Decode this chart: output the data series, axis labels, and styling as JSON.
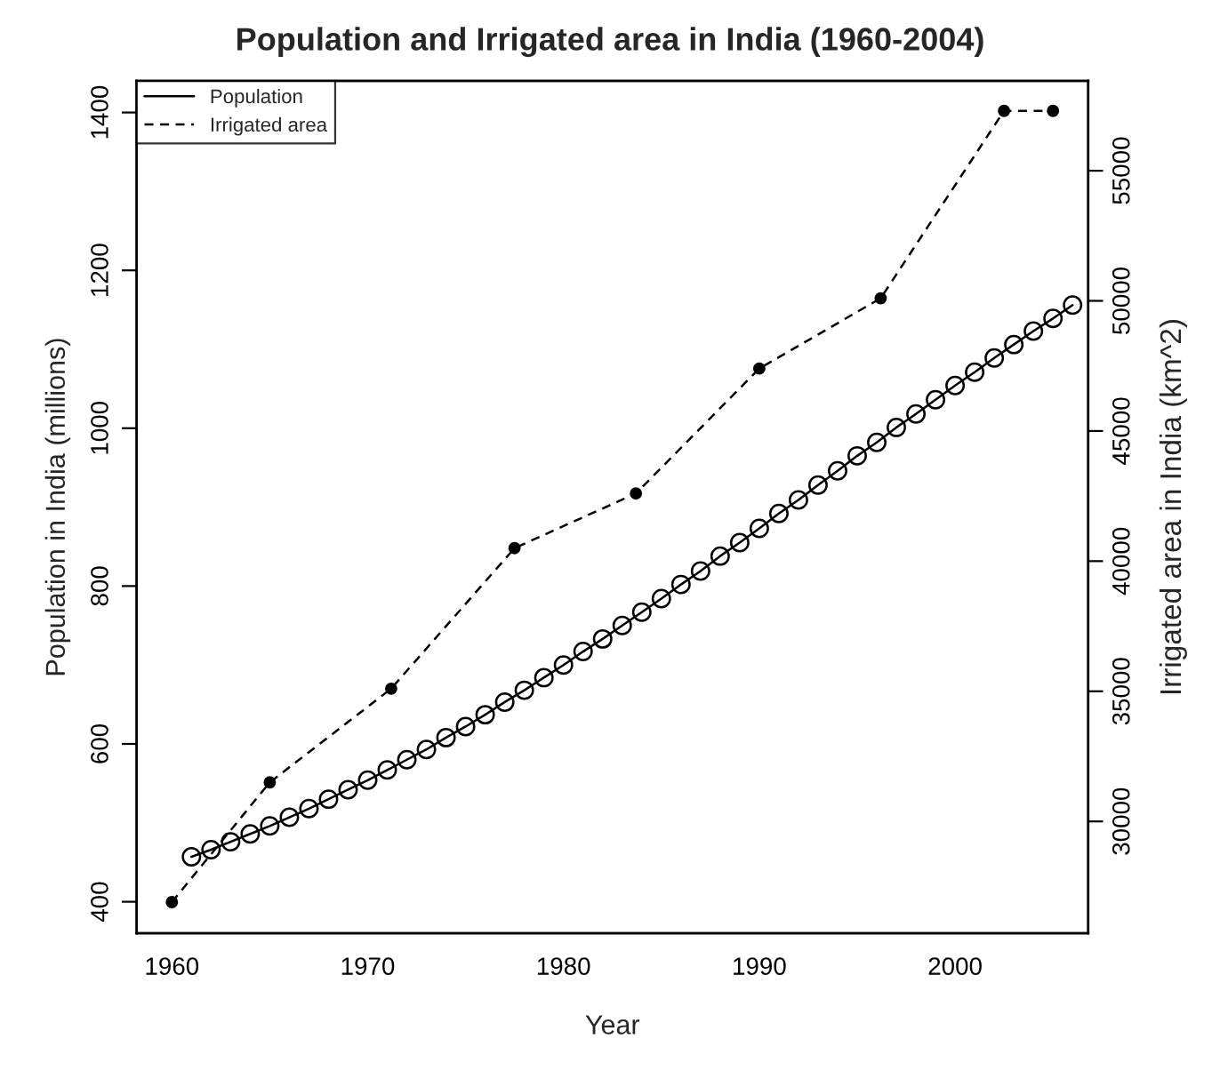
{
  "chart_data": {
    "type": "line",
    "title": "Population and Irrigated area in India (1960-2004)",
    "xlabel": "Year",
    "ylabel": "Population in India (millions)",
    "y2label": "Irrigated area in India (km^2)",
    "xlim": [
      1958.2,
      2006.8
    ],
    "xticks": [
      1960,
      1970,
      1980,
      1990,
      2000
    ],
    "ylim": [
      360,
      1440
    ],
    "yticks": [
      400,
      600,
      800,
      1000,
      1200,
      1400
    ],
    "y2lim": [
      25700,
      58450
    ],
    "y2ticks": [
      30000,
      35000,
      40000,
      45000,
      50000,
      55000
    ],
    "grid": false,
    "legend": "top left",
    "series": [
      {
        "name": "Population",
        "color": "#000000",
        "marker": "circle",
        "line_style": "solid",
        "x": [
          1961,
          1962,
          1963,
          1964,
          1965,
          1966,
          1967,
          1968,
          1969,
          1970,
          1971,
          1972,
          1973,
          1974,
          1975,
          1976,
          1977,
          1978,
          1979,
          1980,
          1981,
          1982,
          1983,
          1984,
          1985,
          1986,
          1987,
          1988,
          1989,
          1990,
          1991,
          1992,
          1993,
          1994,
          1995,
          1996,
          1997,
          1998,
          1999,
          2000,
          2001,
          2002,
          2003,
          2004,
          2005,
          2006
        ],
        "values": [
          457,
          466,
          476,
          486,
          496,
          507,
          518,
          530,
          542,
          554,
          567,
          580,
          593,
          608,
          622,
          637,
          653,
          668,
          684,
          700,
          717,
          733,
          750,
          767,
          784,
          802,
          819,
          838,
          855,
          873,
          892,
          909,
          928,
          946,
          965,
          982,
          1001,
          1018,
          1036,
          1054,
          1071,
          1089,
          1106,
          1123,
          1139,
          1156
        ]
      },
      {
        "name": "Irrigated area",
        "color": "#000000",
        "marker": "circle",
        "line_style": "dashed",
        "axis": "y2",
        "x": [
          1960,
          1965,
          1971.2,
          1977.5,
          1983.7,
          1990,
          1996.2,
          2002.5,
          2005
        ],
        "values": [
          26900,
          31500,
          35100,
          40500,
          42600,
          47400,
          50100,
          57300,
          57300
        ]
      }
    ]
  }
}
